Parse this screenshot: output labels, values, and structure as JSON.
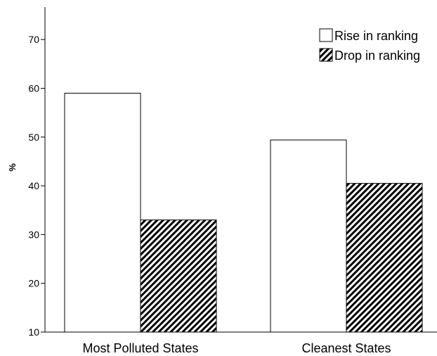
{
  "chart_data": {
    "type": "bar",
    "title": "",
    "xlabel": "",
    "ylabel": "%",
    "ylim": [
      10,
      75
    ],
    "yticks": [
      10,
      20,
      30,
      40,
      50,
      60,
      70
    ],
    "grid": false,
    "legend_position": "top-right",
    "categories": [
      "Most Polluted States",
      "Cleanest States"
    ],
    "series": [
      {
        "name": "Rise in ranking",
        "values": [
          59,
          49.4
        ],
        "fill": "white"
      },
      {
        "name": "Drop in ranking",
        "values": [
          33,
          40.5
        ],
        "fill": "diagonal-hatch"
      }
    ]
  },
  "colors": {
    "bar_outline": "#000000",
    "hatch": "#000000",
    "background": "#ffffff"
  }
}
